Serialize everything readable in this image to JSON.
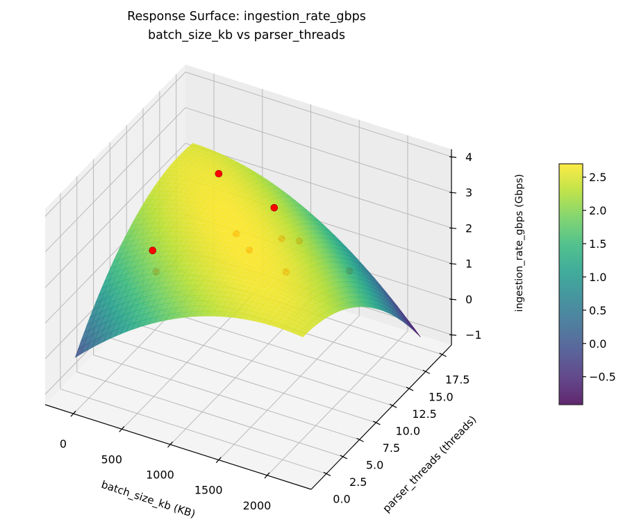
{
  "chart_data": {
    "type": "surface3d",
    "title": "Response Surface: ingestion_rate_gbps",
    "subtitle": "batch_size_kb vs parser_threads",
    "xlabel": "batch_size_kb (KB)",
    "ylabel": "parser_threads (threads)",
    "zlabel": "ingestion_rate_gbps (Gbps)",
    "xlim": [
      -294,
      2452
    ],
    "ylim": [
      -2.3,
      18.9
    ],
    "zlim": [
      -1.29,
      4.21
    ],
    "xticks": [
      "0",
      "500",
      "1000",
      "1500",
      "2000"
    ],
    "yticks": [
      "0.0",
      "2.5",
      "5.0",
      "7.5",
      "10.0",
      "12.5",
      "15.0",
      "17.5"
    ],
    "zticks": [
      "−1",
      "0",
      "1",
      "2",
      "3",
      "4"
    ],
    "grid": true,
    "view": {
      "elevation": 30,
      "azimuth": -60
    },
    "surface": {
      "colormap": "viridis",
      "x_range": [
        -100,
        2250
      ],
      "y_range": [
        -0.6,
        17.2
      ],
      "model": "z = 2.69 - 0.8025*(dx+dy)^2 - 0.05*(dx-dy)^2 - 0.2*(dx+dy)",
      "z_min": -0.92,
      "z_max": 2.7
    },
    "points": {
      "color": "#ff0000",
      "data": [
        [
          630,
          10.4,
          3.57
        ],
        [
          1203,
          10.4,
          3.11
        ],
        [
          310,
          5.1,
          2.15
        ],
        [
          346,
          5.1,
          1.58
        ],
        [
          736,
          11.5,
          1.76
        ],
        [
          1090,
          8.3,
          2.22
        ],
        [
          1137,
          12.5,
          1.78
        ],
        [
          1244,
          13.6,
          1.6
        ],
        [
          1470,
          8.3,
          1.94
        ],
        [
          1760,
          13.6,
          1.2
        ]
      ]
    },
    "colorbar": {
      "range": [
        -0.92,
        2.7
      ],
      "ticks": [
        "−0.5",
        "0.0",
        "0.5",
        "1.0",
        "1.5",
        "2.0",
        "2.5"
      ]
    }
  }
}
